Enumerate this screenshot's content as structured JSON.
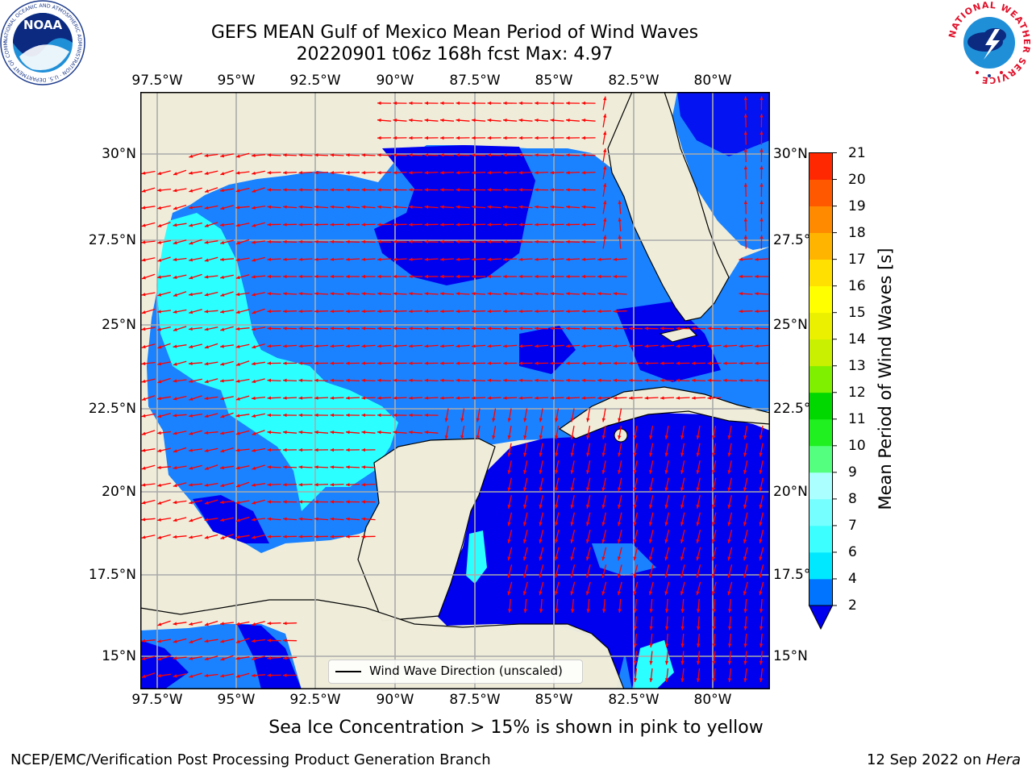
{
  "title": {
    "line1": "GEFS MEAN Gulf of Mexico Mean Period of Wind Waves",
    "line2": "20220901 t06z 168h fcst   Max: 4.97"
  },
  "axes": {
    "lon_labels": [
      "97.5°W",
      "95°W",
      "92.5°W",
      "90°W",
      "87.5°W",
      "85°W",
      "82.5°W",
      "80°W"
    ],
    "lat_labels": [
      "30°N",
      "27.5°N",
      "25°N",
      "22.5°N",
      "20°N",
      "17.5°N",
      "15°N"
    ]
  },
  "legend": {
    "label": "Wind Wave Direction (unscaled)"
  },
  "colorbar": {
    "label": "Mean Period of Wind Waves [s]",
    "ticks": [
      "2",
      "4",
      "6",
      "7",
      "8",
      "9",
      "10",
      "11",
      "12",
      "13",
      "14",
      "15",
      "16",
      "17",
      "18",
      "19",
      "20",
      "21"
    ],
    "colors": [
      "#0073ff",
      "#00e8ff",
      "#3cffff",
      "#75ffff",
      "#acffff",
      "#54ff80",
      "#20ef20",
      "#00d800",
      "#7ef000",
      "#c8f000",
      "#eaf000",
      "#ffff00",
      "#ffe000",
      "#ffb400",
      "#ff8a00",
      "#ff5800",
      "#ff2800",
      "#ff0000"
    ]
  },
  "map": {
    "land_color": "#efedda",
    "ocean_low_color": "#0000ee",
    "ocean_mid_color": "#1a82ff",
    "ocean_high_color": "#2cffff",
    "arrow_color": "#ff0000"
  },
  "note": "Sea Ice Concentration > 15% is shown in pink to yellow",
  "footer": {
    "left": "NCEP/EMC/Verification Post Processing Product Generation Branch",
    "right_date": "12 Sep 2022 on ",
    "right_host": "Hera"
  },
  "logos": {
    "noaa_text": "NOAA",
    "noaa_ring": "NATIONAL OCEANIC AND ATMOSPHERIC ADMINISTRATION · U.S. DEPARTMENT OF COMMERCE",
    "nws_ring": "NATIONAL WEATHER SERVICE"
  }
}
